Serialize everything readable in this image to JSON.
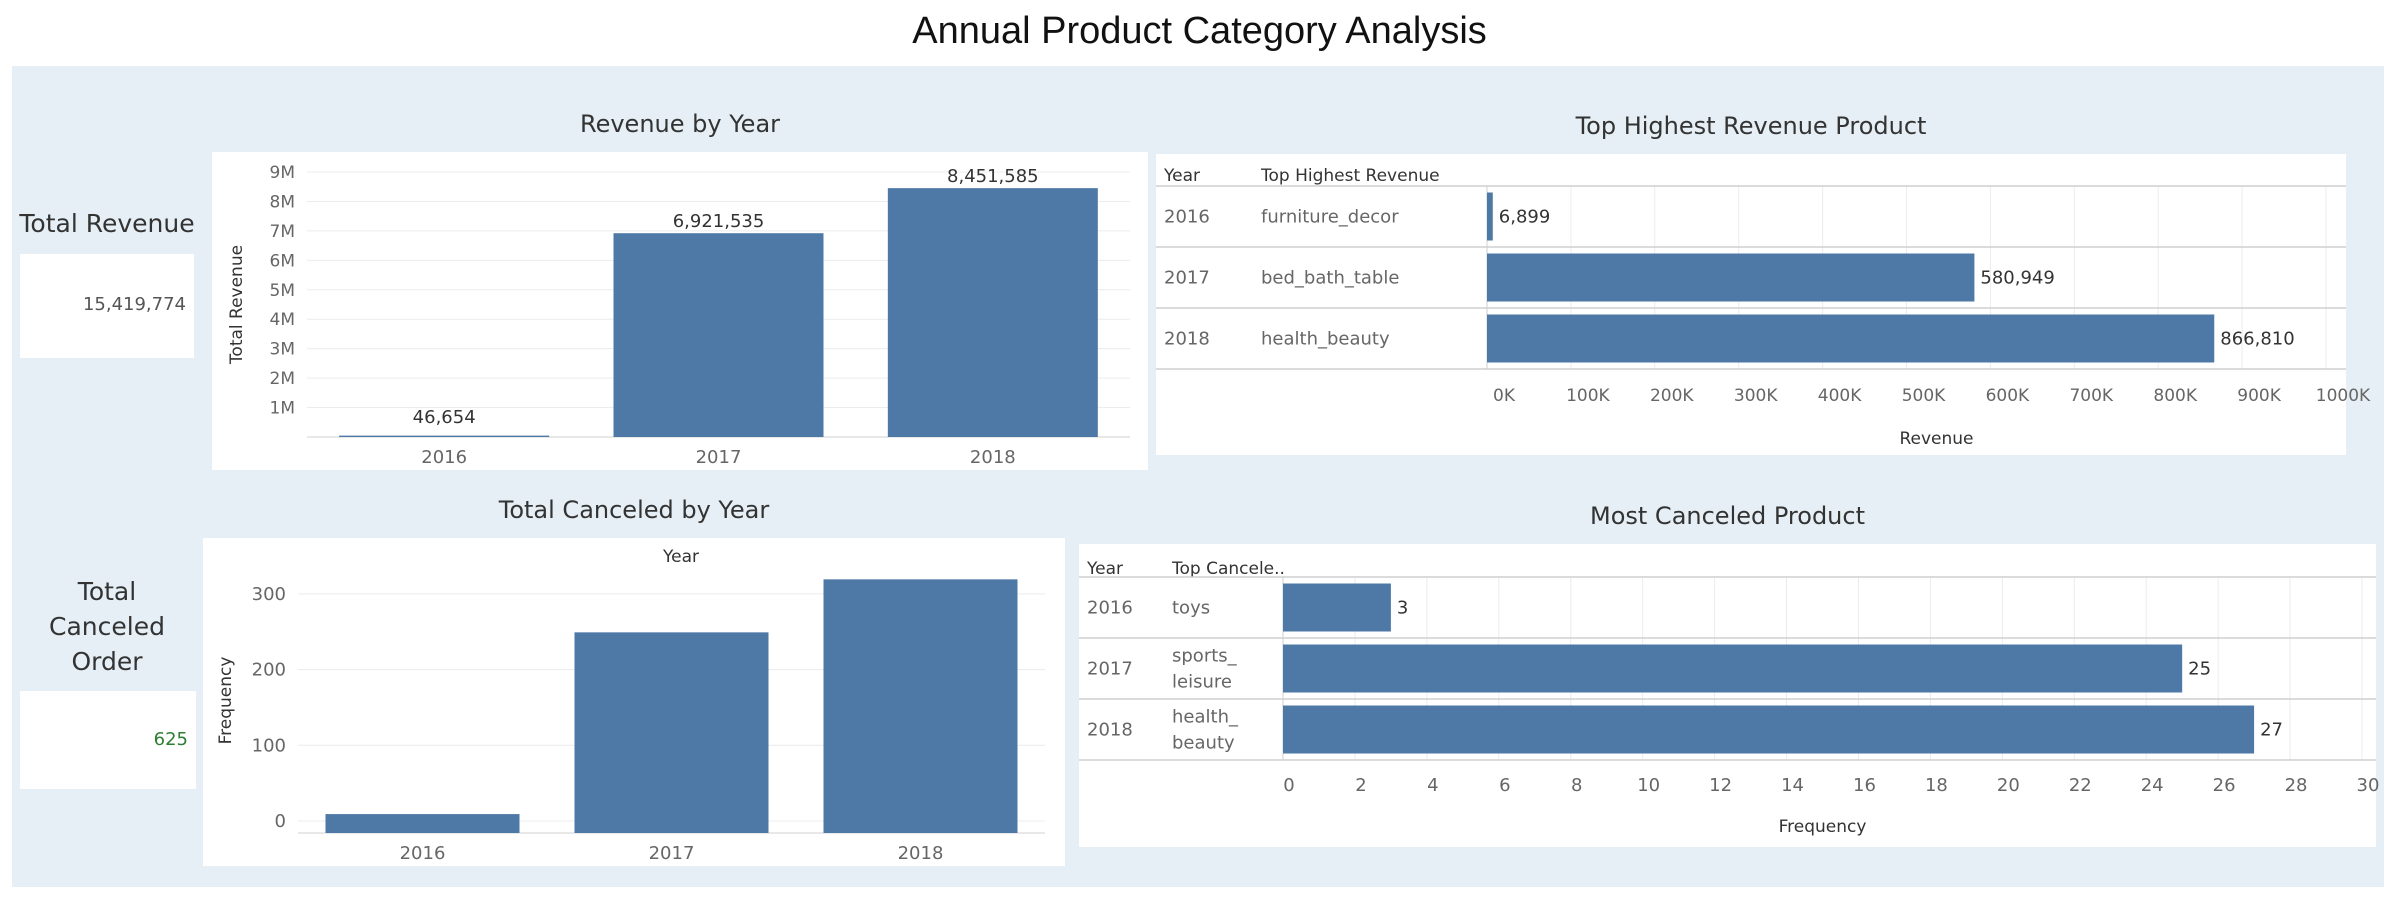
{
  "dashboard": {
    "title": "Annual Product Category Analysis",
    "accent_color": "#4e79a7"
  },
  "kpis": {
    "revenue": {
      "label": "Total Revenue",
      "value": "15,419,774"
    },
    "canceled": {
      "label": "Total Canceled Order",
      "label_lines": [
        "Total",
        "Canceled",
        "Order"
      ],
      "value": "625",
      "value_color": "#2e7d32"
    }
  },
  "chart_data": [
    {
      "id": "revenue_by_year",
      "type": "bar",
      "title": "Revenue by Year",
      "ylabel": "Total Revenue",
      "xlabel": "",
      "categories": [
        "2016",
        "2017",
        "2018"
      ],
      "values": [
        46654,
        6921535,
        8451585
      ],
      "data_labels": [
        "46,654",
        "6,921,535",
        "8,451,585"
      ],
      "yticks": [
        "1M",
        "2M",
        "3M",
        "4M",
        "5M",
        "6M",
        "7M",
        "8M",
        "9M"
      ],
      "ylim": [
        0,
        9000000
      ],
      "grid": true
    },
    {
      "id": "top_revenue_product",
      "type": "bar",
      "orientation": "horizontal",
      "title": "Top Highest Revenue Product",
      "table_headers": [
        "Year",
        "Top Highest Revenue"
      ],
      "rows": [
        {
          "year": "2016",
          "category": "furniture_decor",
          "value": 6899,
          "label": "6,899"
        },
        {
          "year": "2017",
          "category": "bed_bath_table",
          "value": 580949,
          "label": "580,949"
        },
        {
          "year": "2018",
          "category": "health_beauty",
          "value": 866810,
          "label": "866,810"
        }
      ],
      "xticks": [
        "0K",
        "100K",
        "200K",
        "300K",
        "400K",
        "500K",
        "600K",
        "700K",
        "800K",
        "900K",
        "1000K"
      ],
      "xlim": [
        0,
        1000000
      ],
      "xlabel": "Revenue",
      "grid": true
    },
    {
      "id": "total_canceled_by_year",
      "type": "bar",
      "title": "Total Canceled by Year",
      "header": "Year",
      "ylabel": "Frequency",
      "categories": [
        "2016",
        "2017",
        "2018"
      ],
      "values": [
        25,
        265,
        335
      ],
      "yticks": [
        "0",
        "100",
        "200",
        "300"
      ],
      "ylim": [
        0,
        350
      ],
      "grid": true
    },
    {
      "id": "most_canceled_product",
      "type": "bar",
      "orientation": "horizontal",
      "title": "Most Canceled Product",
      "table_headers": [
        "Year",
        "Top Cancele.."
      ],
      "rows": [
        {
          "year": "2016",
          "category_lines": [
            "toys"
          ],
          "value": 3,
          "label": "3"
        },
        {
          "year": "2017",
          "category_lines": [
            "sports_",
            "leisure"
          ],
          "value": 25,
          "label": "25"
        },
        {
          "year": "2018",
          "category_lines": [
            "health_",
            "beauty"
          ],
          "value": 27,
          "label": "27"
        }
      ],
      "xticks": [
        "0",
        "2",
        "4",
        "6",
        "8",
        "10",
        "12",
        "14",
        "16",
        "18",
        "20",
        "22",
        "24",
        "26",
        "28",
        "30"
      ],
      "xlim": [
        0,
        30
      ],
      "xlabel": "Frequency",
      "grid": true
    }
  ]
}
